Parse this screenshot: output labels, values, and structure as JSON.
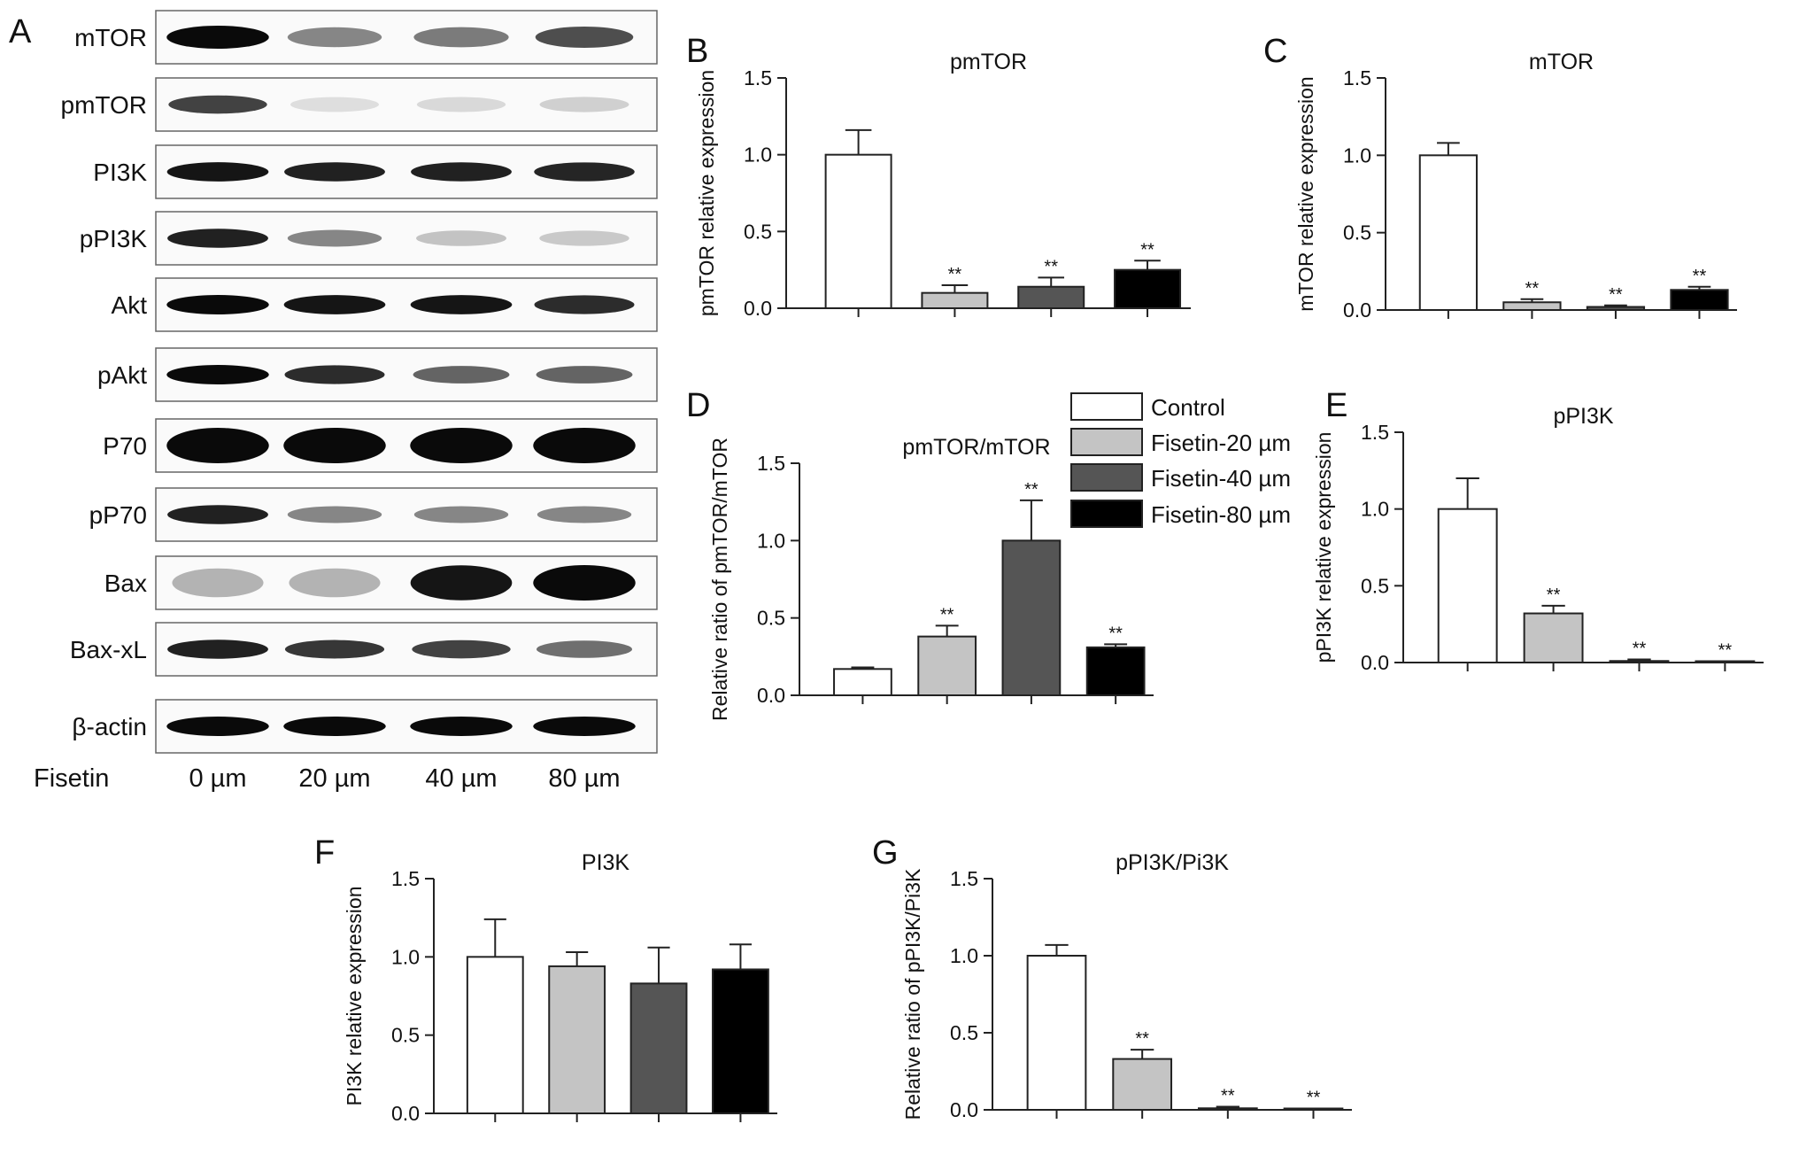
{
  "panel_letters": [
    "A",
    "B",
    "C",
    "D",
    "E",
    "F",
    "G"
  ],
  "blot": {
    "rows": [
      {
        "label": "mTOR",
        "bands": [
          1.0,
          0.45,
          0.5,
          0.7
        ],
        "shape": "smear"
      },
      {
        "label": "pmTOR",
        "bands": [
          0.75,
          0.06,
          0.08,
          0.12
        ],
        "shape": "faint"
      },
      {
        "label": "PI3K",
        "bands": [
          0.95,
          0.9,
          0.9,
          0.88
        ],
        "shape": "band"
      },
      {
        "label": "pPI3K",
        "bands": [
          0.9,
          0.45,
          0.18,
          0.15
        ],
        "shape": "band"
      },
      {
        "label": "Akt",
        "bands": [
          1.0,
          0.95,
          0.95,
          0.85
        ],
        "shape": "band"
      },
      {
        "label": "pAkt",
        "bands": [
          1.0,
          0.85,
          0.6,
          0.6
        ],
        "shape": "band"
      },
      {
        "label": "P70",
        "bands": [
          1.0,
          1.0,
          1.0,
          1.0
        ],
        "shape": "thick"
      },
      {
        "label": "pP70",
        "bands": [
          0.9,
          0.45,
          0.45,
          0.45
        ],
        "shape": "band"
      },
      {
        "label": "Bax",
        "bands": [
          0.25,
          0.25,
          0.95,
          1.0
        ],
        "shape": "thick"
      },
      {
        "label": "Bax-xL",
        "bands": [
          0.9,
          0.8,
          0.75,
          0.55
        ],
        "shape": "band"
      },
      {
        "label": "β-actin",
        "bands": [
          1.0,
          1.0,
          1.0,
          1.0
        ],
        "shape": "band"
      }
    ],
    "treatment_label": "Fisetin",
    "lanes": [
      "0 µm",
      "20 µm",
      "40 µm",
      "80 µm"
    ]
  },
  "legend": {
    "items": [
      {
        "label": "Control",
        "color": "#ffffff"
      },
      {
        "label": "Fisetin-20 µm",
        "color": "#c4c4c4"
      },
      {
        "label": "Fisetin-40 µm",
        "color": "#555555"
      },
      {
        "label": "Fisetin-80 µm",
        "color": "#000000"
      }
    ]
  },
  "chart_data": [
    {
      "panel": "B",
      "type": "bar",
      "title": "pmTOR",
      "ylabel": "pmTOR relative expression",
      "ylim": [
        0,
        1.5
      ],
      "yticks": [
        "0.0",
        "0.5",
        "1.0",
        "1.5"
      ],
      "categories": [
        "Control",
        "Fisetin-20 µm",
        "Fisetin-40 µm",
        "Fisetin-80 µm"
      ],
      "values": [
        1.0,
        0.1,
        0.14,
        0.25
      ],
      "errors": [
        0.16,
        0.05,
        0.06,
        0.06
      ],
      "annotations": [
        "",
        "**",
        "**",
        "**"
      ]
    },
    {
      "panel": "C",
      "type": "bar",
      "title": "mTOR",
      "ylabel": "mTOR relative expression",
      "ylim": [
        0,
        1.5
      ],
      "yticks": [
        "0.0",
        "0.5",
        "1.0",
        "1.5"
      ],
      "categories": [
        "Control",
        "Fisetin-20 µm",
        "Fisetin-40 µm",
        "Fisetin-80 µm"
      ],
      "values": [
        1.0,
        0.05,
        0.02,
        0.13
      ],
      "errors": [
        0.08,
        0.02,
        0.01,
        0.02
      ],
      "annotations": [
        "",
        "**",
        "**",
        "**"
      ]
    },
    {
      "panel": "D",
      "type": "bar",
      "title": "pmTOR/mTOR",
      "ylabel": "Relative ratio of pmTOR/mTOR",
      "ylim": [
        0,
        1.5
      ],
      "yticks": [
        "0.0",
        "0.5",
        "1.0",
        "1.5"
      ],
      "categories": [
        "Control",
        "Fisetin-20 µm",
        "Fisetin-40 µm",
        "Fisetin-80 µm"
      ],
      "values": [
        0.17,
        0.38,
        1.0,
        0.31
      ],
      "errors": [
        0.01,
        0.07,
        0.26,
        0.02
      ],
      "annotations": [
        "",
        "**",
        "**",
        "**"
      ]
    },
    {
      "panel": "E",
      "type": "bar",
      "title": "pPI3K",
      "ylabel": "pPI3K relative expression",
      "ylim": [
        0,
        1.5
      ],
      "yticks": [
        "0.0",
        "0.5",
        "1.0",
        "1.5"
      ],
      "categories": [
        "Control",
        "Fisetin-20 µm",
        "Fisetin-40 µm",
        "Fisetin-80 µm"
      ],
      "values": [
        1.0,
        0.32,
        0.01,
        0.005
      ],
      "errors": [
        0.2,
        0.05,
        0.01,
        0.003
      ],
      "annotations": [
        "",
        "**",
        "**",
        "**"
      ]
    },
    {
      "panel": "F",
      "type": "bar",
      "title": "PI3K",
      "ylabel": "PI3K relative expression",
      "ylim": [
        0,
        1.5
      ],
      "yticks": [
        "0.0",
        "0.5",
        "1.0",
        "1.5"
      ],
      "categories": [
        "Control",
        "Fisetin-20 µm",
        "Fisetin-40 µm",
        "Fisetin-80 µm"
      ],
      "values": [
        1.0,
        0.94,
        0.83,
        0.92
      ],
      "errors": [
        0.24,
        0.09,
        0.23,
        0.16
      ],
      "annotations": [
        "",
        "",
        "",
        ""
      ]
    },
    {
      "panel": "G",
      "type": "bar",
      "title": "pPI3K/Pi3K",
      "ylabel": "Relative ratio of pPI3K/Pi3K",
      "ylim": [
        0,
        1.5
      ],
      "yticks": [
        "0.0",
        "0.5",
        "1.0",
        "1.5"
      ],
      "categories": [
        "Control",
        "Fisetin-20 µm",
        "Fisetin-40 µm",
        "Fisetin-80 µm"
      ],
      "values": [
        1.0,
        0.33,
        0.01,
        0.005
      ],
      "errors": [
        0.07,
        0.06,
        0.01,
        0.003
      ],
      "annotations": [
        "",
        "**",
        "**",
        "**"
      ]
    }
  ]
}
